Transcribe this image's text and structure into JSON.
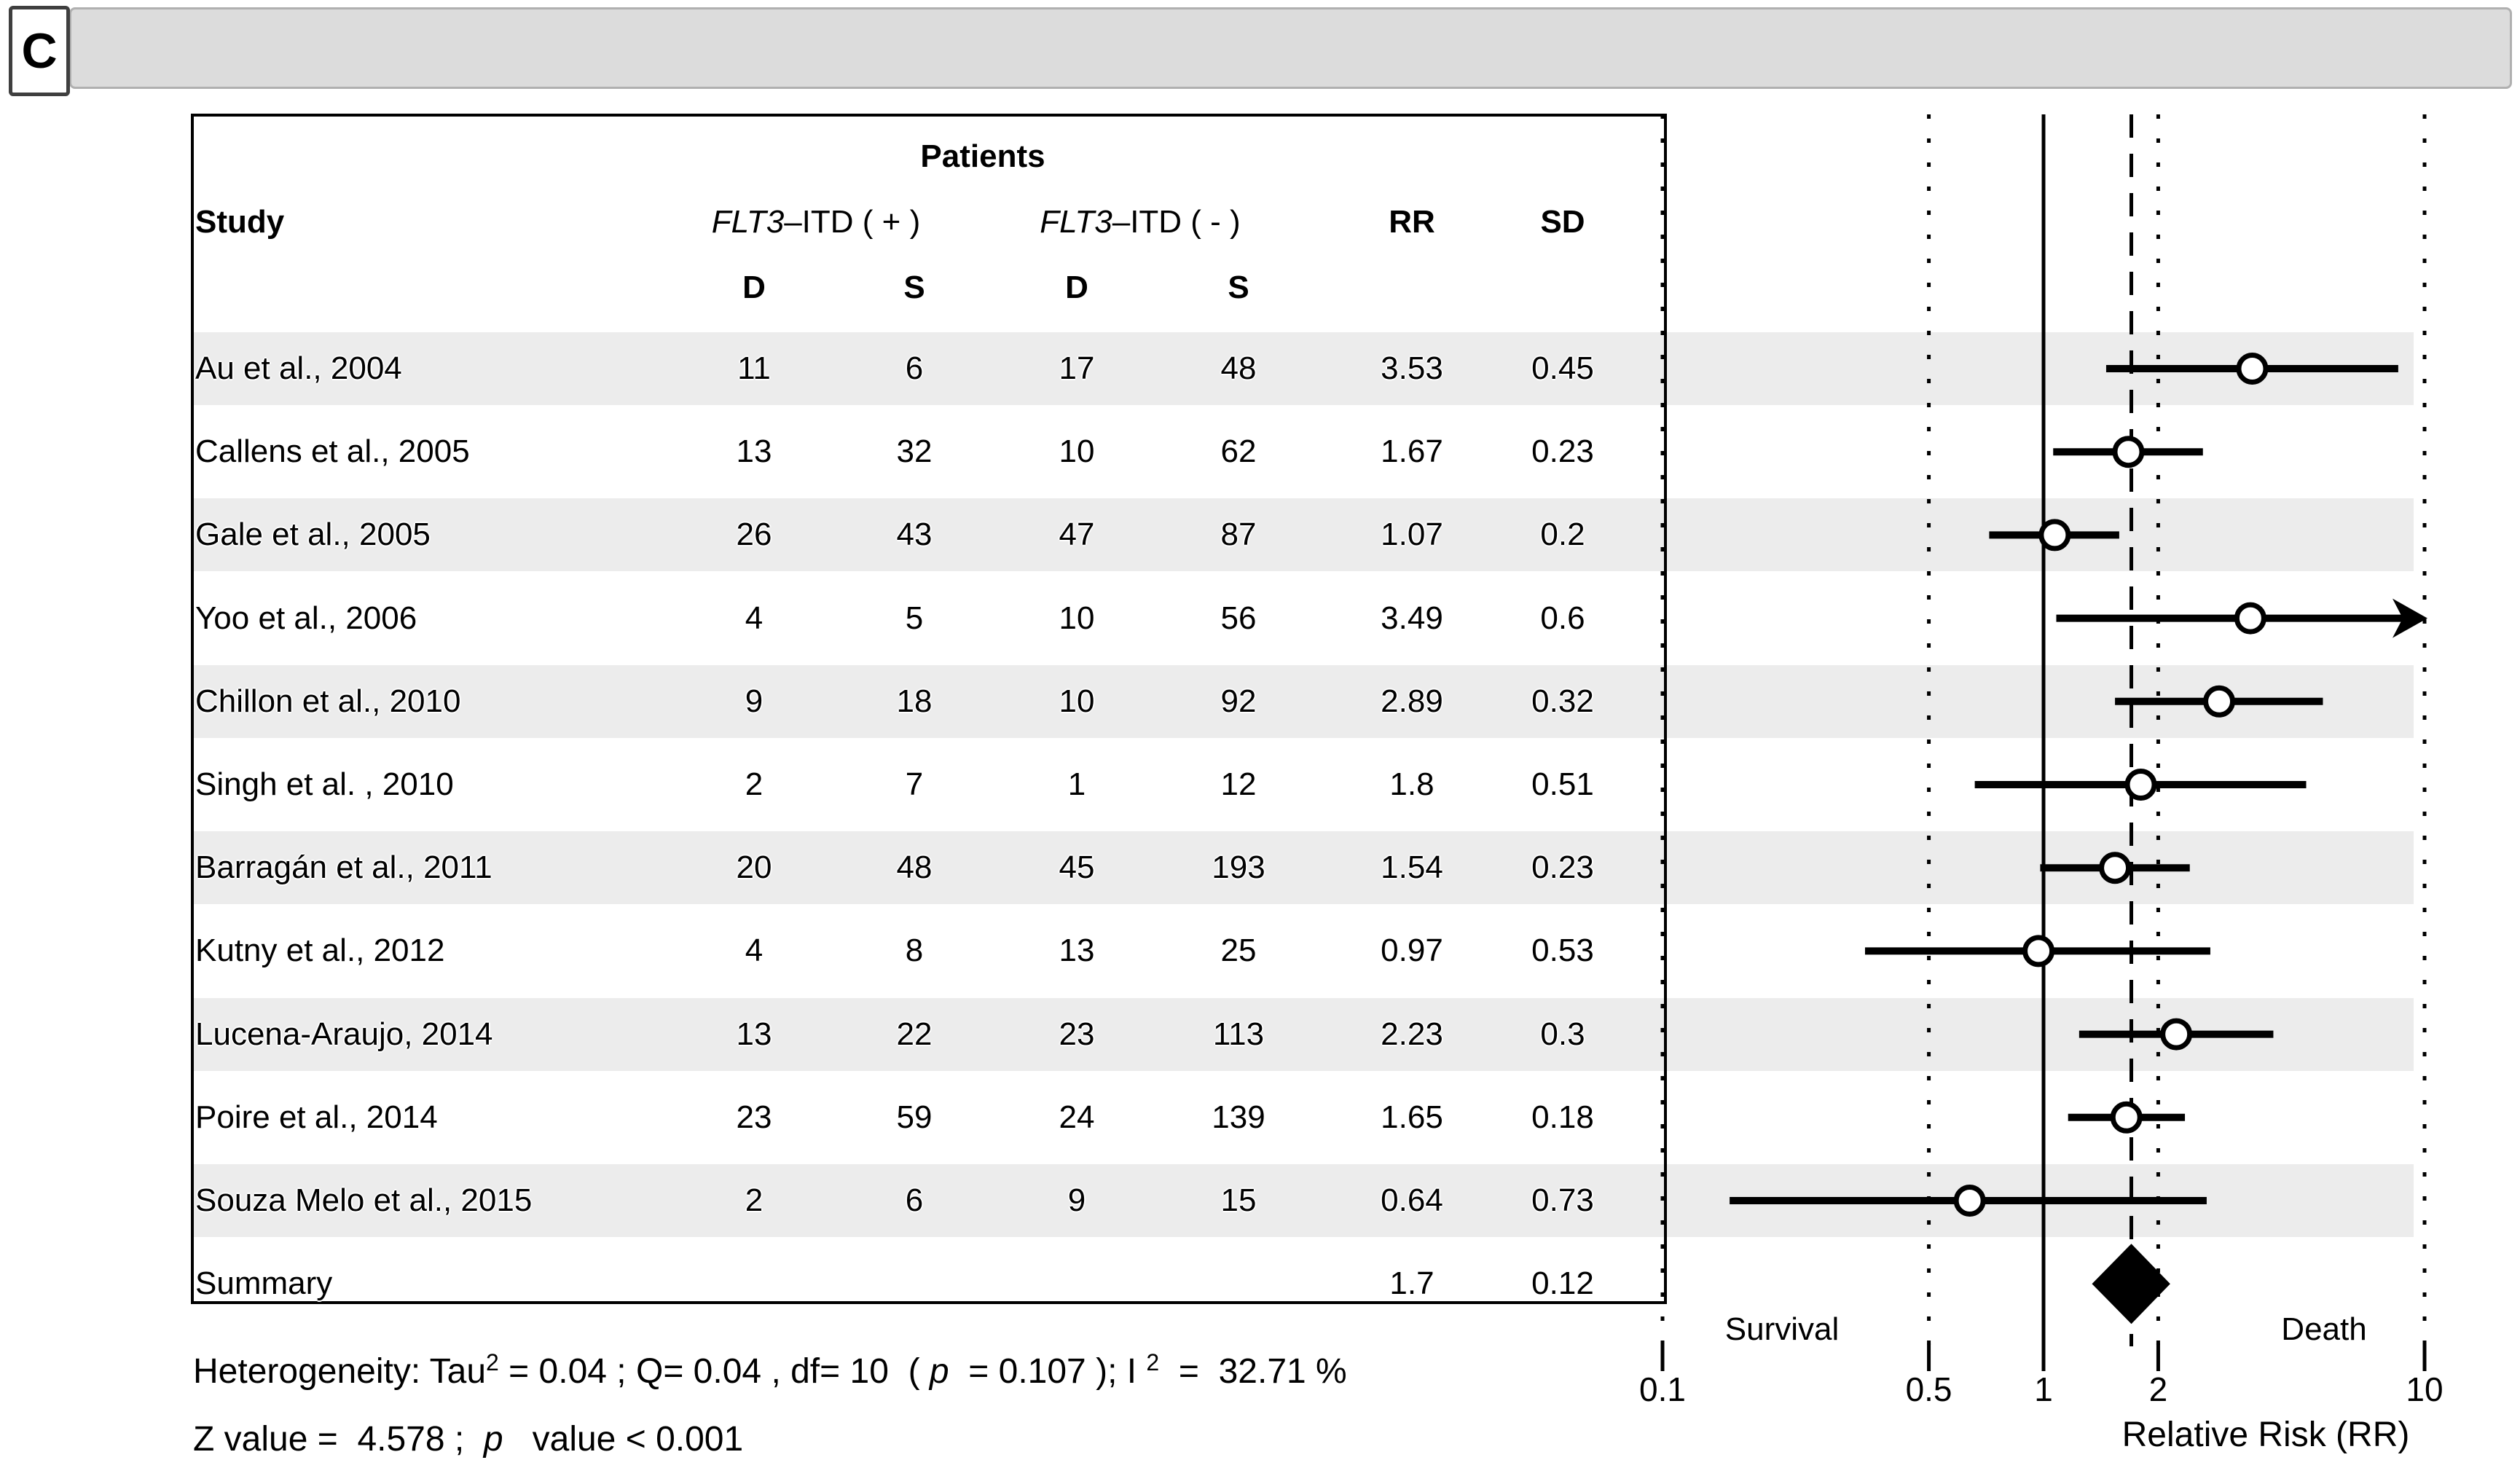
{
  "panel_label": "C",
  "table": {
    "header": {
      "patients": "Patients",
      "study": "Study",
      "group_pos_gene": "FLT3",
      "group_pos_rest": "–ITD ( + )",
      "group_neg_gene": "FLT3",
      "group_neg_rest": "–ITD ( - )",
      "rr": "RR",
      "sd": "SD",
      "d1": "D",
      "s1": "S",
      "d2": "D",
      "s2": "S"
    },
    "rows": [
      {
        "study": "Au et al., 2004",
        "d_pos": "11",
        "s_pos": "6",
        "d_neg": "17",
        "s_neg": "48",
        "rr": "3.53",
        "sd": "0.45"
      },
      {
        "study": "Callens et al., 2005",
        "d_pos": "13",
        "s_pos": "32",
        "d_neg": "10",
        "s_neg": "62",
        "rr": "1.67",
        "sd": "0.23"
      },
      {
        "study": "Gale et al., 2005",
        "d_pos": "26",
        "s_pos": "43",
        "d_neg": "47",
        "s_neg": "87",
        "rr": "1.07",
        "sd": "0.2"
      },
      {
        "study": "Yoo et al., 2006",
        "d_pos": "4",
        "s_pos": "5",
        "d_neg": "10",
        "s_neg": "56",
        "rr": "3.49",
        "sd": "0.6"
      },
      {
        "study": "Chillon et al., 2010",
        "d_pos": "9",
        "s_pos": "18",
        "d_neg": "10",
        "s_neg": "92",
        "rr": "2.89",
        "sd": "0.32"
      },
      {
        "study": "Singh et al. , 2010",
        "d_pos": "2",
        "s_pos": "7",
        "d_neg": "1",
        "s_neg": "12",
        "rr": "1.8",
        "sd": "0.51"
      },
      {
        "study": "Barragán et al., 2011",
        "d_pos": "20",
        "s_pos": "48",
        "d_neg": "45",
        "s_neg": "193",
        "rr": "1.54",
        "sd": "0.23"
      },
      {
        "study": "Kutny et al., 2012",
        "d_pos": "4",
        "s_pos": "8",
        "d_neg": "13",
        "s_neg": "25",
        "rr": "0.97",
        "sd": "0.53"
      },
      {
        "study": "Lucena-Araujo, 2014",
        "d_pos": "13",
        "s_pos": "22",
        "d_neg": "23",
        "s_neg": "113",
        "rr": "2.23",
        "sd": "0.3"
      },
      {
        "study": "Poire et al., 2014",
        "d_pos": "23",
        "s_pos": "59",
        "d_neg": "24",
        "s_neg": "139",
        "rr": "1.65",
        "sd": "0.18"
      },
      {
        "study": "Souza Melo et al., 2015",
        "d_pos": "2",
        "s_pos": "6",
        "d_neg": "9",
        "s_neg": "15",
        "rr": "0.64",
        "sd": "0.73"
      }
    ],
    "summary_row": {
      "study": "Summary",
      "rr": "1.7",
      "sd": "0.12"
    }
  },
  "plot": {
    "left_label": "Survival",
    "right_label": "Death",
    "xlabel": "Relative Risk (RR)",
    "ticks": [
      {
        "value": 0.1,
        "label": "0.1"
      },
      {
        "value": 0.5,
        "label": "0.5"
      },
      {
        "value": 1,
        "label": "1"
      },
      {
        "value": 2,
        "label": "2"
      },
      {
        "value": 10,
        "label": "10"
      }
    ],
    "grid_lines": [
      {
        "value": 0.1,
        "style": "dotted"
      },
      {
        "value": 0.5,
        "style": "dotted"
      },
      {
        "value": 1,
        "style": "solid"
      },
      {
        "value": 1.7,
        "style": "dashed"
      },
      {
        "value": 2,
        "style": "dotted"
      },
      {
        "value": 10,
        "style": "dotted"
      }
    ]
  },
  "footnotes": {
    "het_prefix": "Heterogeneity: Tau",
    "het_sup1": "2",
    "het_mid1": " = 0.04 ; Q= 0.04 , df= 10  ( ",
    "het_p": "p",
    "het_mid2": "  = 0.107 ); I ",
    "het_sup2": "2",
    "het_end": "  =  32.71 %",
    "z_prefix": "Z value =  4.578 ;  ",
    "z_p": "p",
    "z_end": "   value < 0.001"
  },
  "chart_data": {
    "type": "forest",
    "x_axis": {
      "scale": "log",
      "range": [
        0.1,
        10
      ],
      "ticks": [
        0.1,
        0.5,
        1,
        2,
        10
      ],
      "label": "Relative Risk (RR)",
      "reference_line": 1,
      "summary_reference_line": 1.7,
      "left_region_label": "Survival",
      "right_region_label": "Death"
    },
    "studies": [
      {
        "name": "Au et al., 2004",
        "flt3_itd_pos": {
          "D": 11,
          "S": 6
        },
        "flt3_itd_neg": {
          "D": 17,
          "S": 48
        },
        "rr": 3.53,
        "sd": 0.45,
        "ci95": [
          1.46,
          8.53
        ]
      },
      {
        "name": "Callens et al., 2005",
        "flt3_itd_pos": {
          "D": 13,
          "S": 32
        },
        "flt3_itd_neg": {
          "D": 10,
          "S": 62
        },
        "rr": 1.67,
        "sd": 0.23,
        "ci95": [
          1.06,
          2.62
        ]
      },
      {
        "name": "Gale et al., 2005",
        "flt3_itd_pos": {
          "D": 26,
          "S": 43
        },
        "flt3_itd_neg": {
          "D": 47,
          "S": 87
        },
        "rr": 1.07,
        "sd": 0.2,
        "ci95": [
          0.72,
          1.58
        ]
      },
      {
        "name": "Yoo et al., 2006",
        "flt3_itd_pos": {
          "D": 4,
          "S": 5
        },
        "flt3_itd_neg": {
          "D": 10,
          "S": 56
        },
        "rr": 3.49,
        "sd": 0.6,
        "ci95": [
          1.08,
          11.31
        ],
        "upper_off_scale": true
      },
      {
        "name": "Chillon et al., 2010",
        "flt3_itd_pos": {
          "D": 9,
          "S": 18
        },
        "flt3_itd_neg": {
          "D": 10,
          "S": 92
        },
        "rr": 2.89,
        "sd": 0.32,
        "ci95": [
          1.54,
          5.41
        ]
      },
      {
        "name": "Singh et al. , 2010",
        "flt3_itd_pos": {
          "D": 2,
          "S": 7
        },
        "flt3_itd_neg": {
          "D": 1,
          "S": 12
        },
        "rr": 1.8,
        "sd": 0.51,
        "ci95": [
          0.66,
          4.89
        ]
      },
      {
        "name": "Barragán et al., 2011",
        "flt3_itd_pos": {
          "D": 20,
          "S": 48
        },
        "flt3_itd_neg": {
          "D": 45,
          "S": 193
        },
        "rr": 1.54,
        "sd": 0.23,
        "ci95": [
          0.98,
          2.42
        ]
      },
      {
        "name": "Kutny et al., 2012",
        "flt3_itd_pos": {
          "D": 4,
          "S": 8
        },
        "flt3_itd_neg": {
          "D": 13,
          "S": 25
        },
        "rr": 0.97,
        "sd": 0.53,
        "ci95": [
          0.34,
          2.74
        ]
      },
      {
        "name": "Lucena-Araujo, 2014",
        "flt3_itd_pos": {
          "D": 13,
          "S": 22
        },
        "flt3_itd_neg": {
          "D": 23,
          "S": 113
        },
        "rr": 2.23,
        "sd": 0.3,
        "ci95": [
          1.24,
          4.01
        ]
      },
      {
        "name": "Poire et al., 2014",
        "flt3_itd_pos": {
          "D": 23,
          "S": 59
        },
        "flt3_itd_neg": {
          "D": 24,
          "S": 139
        },
        "rr": 1.65,
        "sd": 0.18,
        "ci95": [
          1.16,
          2.35
        ]
      },
      {
        "name": "Souza Melo et al., 2015",
        "flt3_itd_pos": {
          "D": 2,
          "S": 6
        },
        "flt3_itd_neg": {
          "D": 9,
          "S": 15
        },
        "rr": 0.64,
        "sd": 0.73,
        "ci95": [
          0.15,
          2.68
        ]
      }
    ],
    "summary": {
      "name": "Summary",
      "rr": 1.7,
      "sd": 0.12,
      "ci95": [
        1.34,
        2.15
      ],
      "marker": "filled-diamond"
    },
    "heterogeneity": {
      "tau2": 0.04,
      "Q": 0.04,
      "df": 10,
      "p": 0.107,
      "I2_percent": 32.71
    },
    "z_value": 4.578,
    "p_value": "< 0.001"
  }
}
